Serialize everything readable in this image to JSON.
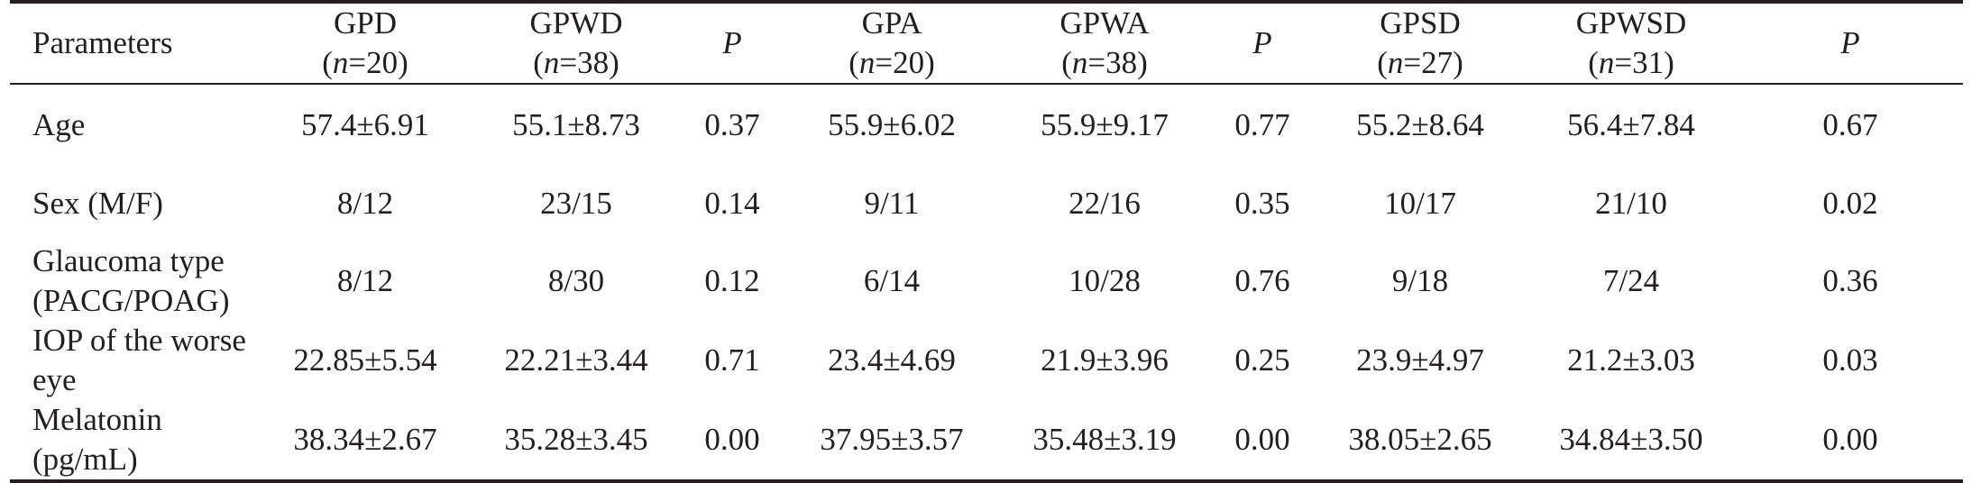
{
  "table": {
    "headers": [
      {
        "label": "Parameters",
        "n": ""
      },
      {
        "label": "GPD",
        "n": "20"
      },
      {
        "label": "GPWD",
        "n": "38"
      },
      {
        "label": "P",
        "n": ""
      },
      {
        "label": "GPA",
        "n": "20"
      },
      {
        "label": "GPWA",
        "n": "38"
      },
      {
        "label": "P",
        "n": ""
      },
      {
        "label": "GPSD",
        "n": "27"
      },
      {
        "label": "GPWSD",
        "n": "31"
      },
      {
        "label": "P",
        "n": ""
      }
    ],
    "n_prefix": "n",
    "n_open": "(",
    "n_eq": "=",
    "n_close": ")",
    "rows": [
      {
        "param": [
          "Age"
        ],
        "values": [
          "57.4±6.91",
          "55.1±8.73",
          "0.37",
          "55.9±6.02",
          "55.9±9.17",
          "0.77",
          "55.2±8.64",
          "56.4±7.84",
          "0.67"
        ]
      },
      {
        "param": [
          "Sex (M/F)"
        ],
        "values": [
          "8/12",
          "23/15",
          "0.14",
          "9/11",
          "22/16",
          "0.35",
          "10/17",
          "21/10",
          "0.02"
        ]
      },
      {
        "param": [
          "Glaucoma type",
          "(PACG/POAG)"
        ],
        "values": [
          "8/12",
          "8/30",
          "0.12",
          "6/14",
          "10/28",
          "0.76",
          "9/18",
          "7/24",
          "0.36"
        ]
      },
      {
        "param": [
          "IOP of the worse eye"
        ],
        "values": [
          "22.85±5.54",
          "22.21±3.44",
          "0.71",
          "23.4±4.69",
          "21.9±3.96",
          "0.25",
          "23.9±4.97",
          "21.2±3.03",
          "0.03"
        ]
      },
      {
        "param": [
          "Melatonin (pg/mL)"
        ],
        "values": [
          "38.34±2.67",
          "35.28±3.45",
          "0.00",
          "37.95±3.57",
          "35.48±3.19",
          "0.00",
          "38.05±2.65",
          "34.84±3.50",
          "0.00"
        ]
      }
    ]
  }
}
